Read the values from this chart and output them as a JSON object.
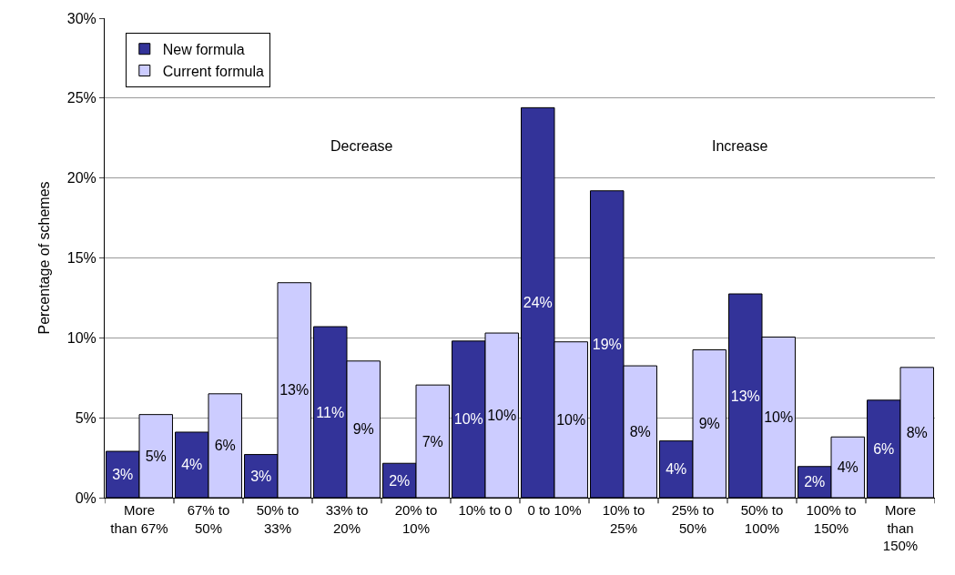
{
  "chart_data": {
    "type": "bar",
    "ylabel": "Percentage of schemes",
    "categories": [
      "More than 67%",
      "67% to 50%",
      "50% to 33%",
      "33% to 20%",
      "20% to 10%",
      "10% to 0",
      "0 to 10%",
      "10% to 25%",
      "25% to 50%",
      "50% to 100%",
      "100% to 150%",
      "More than 150%"
    ],
    "series": [
      {
        "name": "New formula",
        "color": "#333399",
        "values": [
          2.9,
          4.1,
          2.7,
          10.7,
          2.15,
          9.8,
          24.4,
          19.2,
          3.55,
          12.75,
          1.95,
          6.1
        ],
        "value_labels": [
          "3%",
          "4%",
          "3%",
          "11%",
          "2%",
          "10%",
          "24%",
          "19%",
          "4%",
          "13%",
          "2%",
          "6%"
        ]
      },
      {
        "name": "Current formula",
        "color": "#ccccff",
        "values": [
          5.2,
          6.5,
          13.45,
          8.55,
          7.05,
          10.3,
          9.75,
          8.25,
          9.25,
          10.05,
          3.8,
          8.15
        ],
        "value_labels": [
          "5%",
          "6%",
          "13%",
          "9%",
          "7%",
          "10%",
          "10%",
          "8%",
          "9%",
          "10%",
          "4%",
          "8%"
        ]
      }
    ],
    "ylim": [
      0,
      30
    ],
    "yticks": [
      {
        "value": 0,
        "label": "0%"
      },
      {
        "value": 5,
        "label": "5%"
      },
      {
        "value": 10,
        "label": "10%"
      },
      {
        "value": 15,
        "label": "15%"
      },
      {
        "value": 20,
        "label": "20%"
      },
      {
        "value": 25,
        "label": "25%"
      },
      {
        "value": 30,
        "label": "30%"
      }
    ],
    "annotations": [
      "Decrease",
      "Increase"
    ],
    "grid": "y",
    "legend": "top left"
  }
}
